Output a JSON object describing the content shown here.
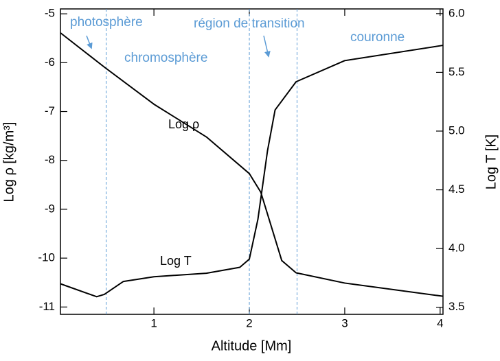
{
  "chart_data": {
    "type": "line",
    "xlabel": "Altitude [Mm]",
    "ylabel": "Log ρ [kg/m³]",
    "y2label": "Log T [K]",
    "xlim": [
      0.02,
      4.03
    ],
    "xticks": [
      1,
      2,
      3,
      4
    ],
    "ylim": [
      -11.15,
      -4.9
    ],
    "yticks": [
      -11,
      -10,
      -9,
      -8,
      -7,
      -6,
      -5
    ],
    "y2lim": [
      3.44,
      6.04
    ],
    "y2ticks": [
      3.5,
      {
        "value": 4,
        "label": "4.0"
      },
      4.5,
      {
        "value": 5,
        "label": "5.0"
      },
      5.5,
      {
        "value": 6,
        "label": "6.0"
      }
    ],
    "vlines": [
      0.5,
      2,
      2.5
    ],
    "vline_color": "#5b9bd5",
    "series": [
      {
        "name": "Log ρ",
        "color": "#000000",
        "x": [
          0.02,
          0.48,
          1.0,
          1.55,
          2.0,
          2.12,
          2.23,
          2.34,
          2.49,
          3.0,
          4.03
        ],
        "values": [
          -5.39,
          -6.09,
          -6.85,
          -7.52,
          -8.27,
          -8.65,
          -9.35,
          -10.05,
          -10.3,
          -10.51,
          -10.78
        ]
      },
      {
        "name": "Log T",
        "color": "#000000",
        "axis": "y2",
        "x": [
          0.02,
          0.4,
          0.48,
          0.68,
          1.0,
          1.55,
          1.9,
          2.0,
          2.09,
          2.19,
          2.27,
          2.49,
          3.0,
          4.03
        ],
        "values": [
          3.7,
          3.59,
          3.61,
          3.72,
          3.76,
          3.79,
          3.84,
          3.91,
          4.25,
          4.83,
          5.18,
          5.42,
          5.6,
          5.73
        ]
      }
    ],
    "annotations": [
      "photosphère",
      "chromosphère",
      "région de transition",
      "couronne"
    ]
  }
}
